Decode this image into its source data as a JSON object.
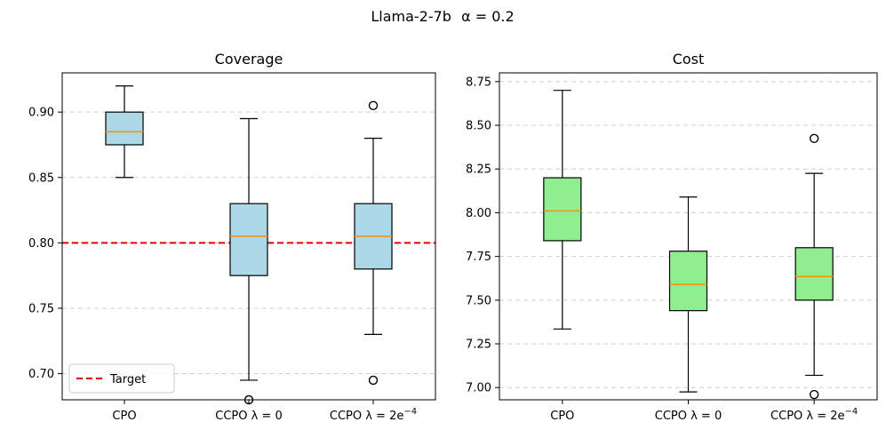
{
  "figure": {
    "suptitle": "Llama-2-7b",
    "suptitle_param": "α = 0.2"
  },
  "chart_data": [
    {
      "type": "boxplot",
      "title": "Coverage",
      "box_color": "#add8e6",
      "median_color": "#ff8c00",
      "ylim": [
        0.68,
        0.93
      ],
      "yticks": [
        0.7,
        0.75,
        0.8,
        0.85,
        0.9
      ],
      "ytick_labels": [
        "0.70",
        "0.75",
        "0.80",
        "0.85",
        "0.90"
      ],
      "grid": true,
      "categories": [
        "CPO",
        "CCPO λ = 0",
        "CCPO λ = 2e⁻⁴"
      ],
      "category_parts": [
        {
          "text": "CPO",
          "sup": ""
        },
        {
          "text": "CCPO λ = 0",
          "sup": ""
        },
        {
          "text": "CCPO λ = 2e",
          "sup": "−4"
        }
      ],
      "boxes": [
        {
          "whislo": 0.85,
          "q1": 0.875,
          "med": 0.885,
          "q3": 0.9,
          "whishi": 0.92,
          "fliers": []
        },
        {
          "whislo": 0.695,
          "q1": 0.775,
          "med": 0.805,
          "q3": 0.83,
          "whishi": 0.895,
          "fliers": [
            0.68
          ]
        },
        {
          "whislo": 0.73,
          "q1": 0.78,
          "med": 0.805,
          "q3": 0.83,
          "whishi": 0.88,
          "fliers": [
            0.905,
            0.695
          ]
        }
      ],
      "target": {
        "value": 0.8,
        "label": "Target",
        "color": "#e00000"
      },
      "legend_location": "lower-left"
    },
    {
      "type": "boxplot",
      "title": "Cost",
      "box_color": "#90ee90",
      "median_color": "#ff8c00",
      "ylim": [
        6.93,
        8.8
      ],
      "yticks": [
        7.0,
        7.25,
        7.5,
        7.75,
        8.0,
        8.25,
        8.5,
        8.75
      ],
      "ytick_labels": [
        "7.00",
        "7.25",
        "7.50",
        "7.75",
        "8.00",
        "8.25",
        "8.50",
        "8.75"
      ],
      "grid": true,
      "categories": [
        "CPO",
        "CCPO λ = 0",
        "CCPO λ = 2e⁻⁴"
      ],
      "category_parts": [
        {
          "text": "CPO",
          "sup": ""
        },
        {
          "text": "CCPO λ = 0",
          "sup": ""
        },
        {
          "text": "CCPO λ = 2e",
          "sup": "−4"
        }
      ],
      "boxes": [
        {
          "whislo": 7.335,
          "q1": 7.84,
          "med": 8.01,
          "q3": 8.2,
          "whishi": 8.7,
          "fliers": []
        },
        {
          "whislo": 6.975,
          "q1": 7.44,
          "med": 7.59,
          "q3": 7.78,
          "whishi": 8.09,
          "fliers": []
        },
        {
          "whislo": 7.07,
          "q1": 7.5,
          "med": 7.635,
          "q3": 7.8,
          "whishi": 8.225,
          "fliers": [
            8.425,
            6.96
          ]
        }
      ]
    }
  ]
}
